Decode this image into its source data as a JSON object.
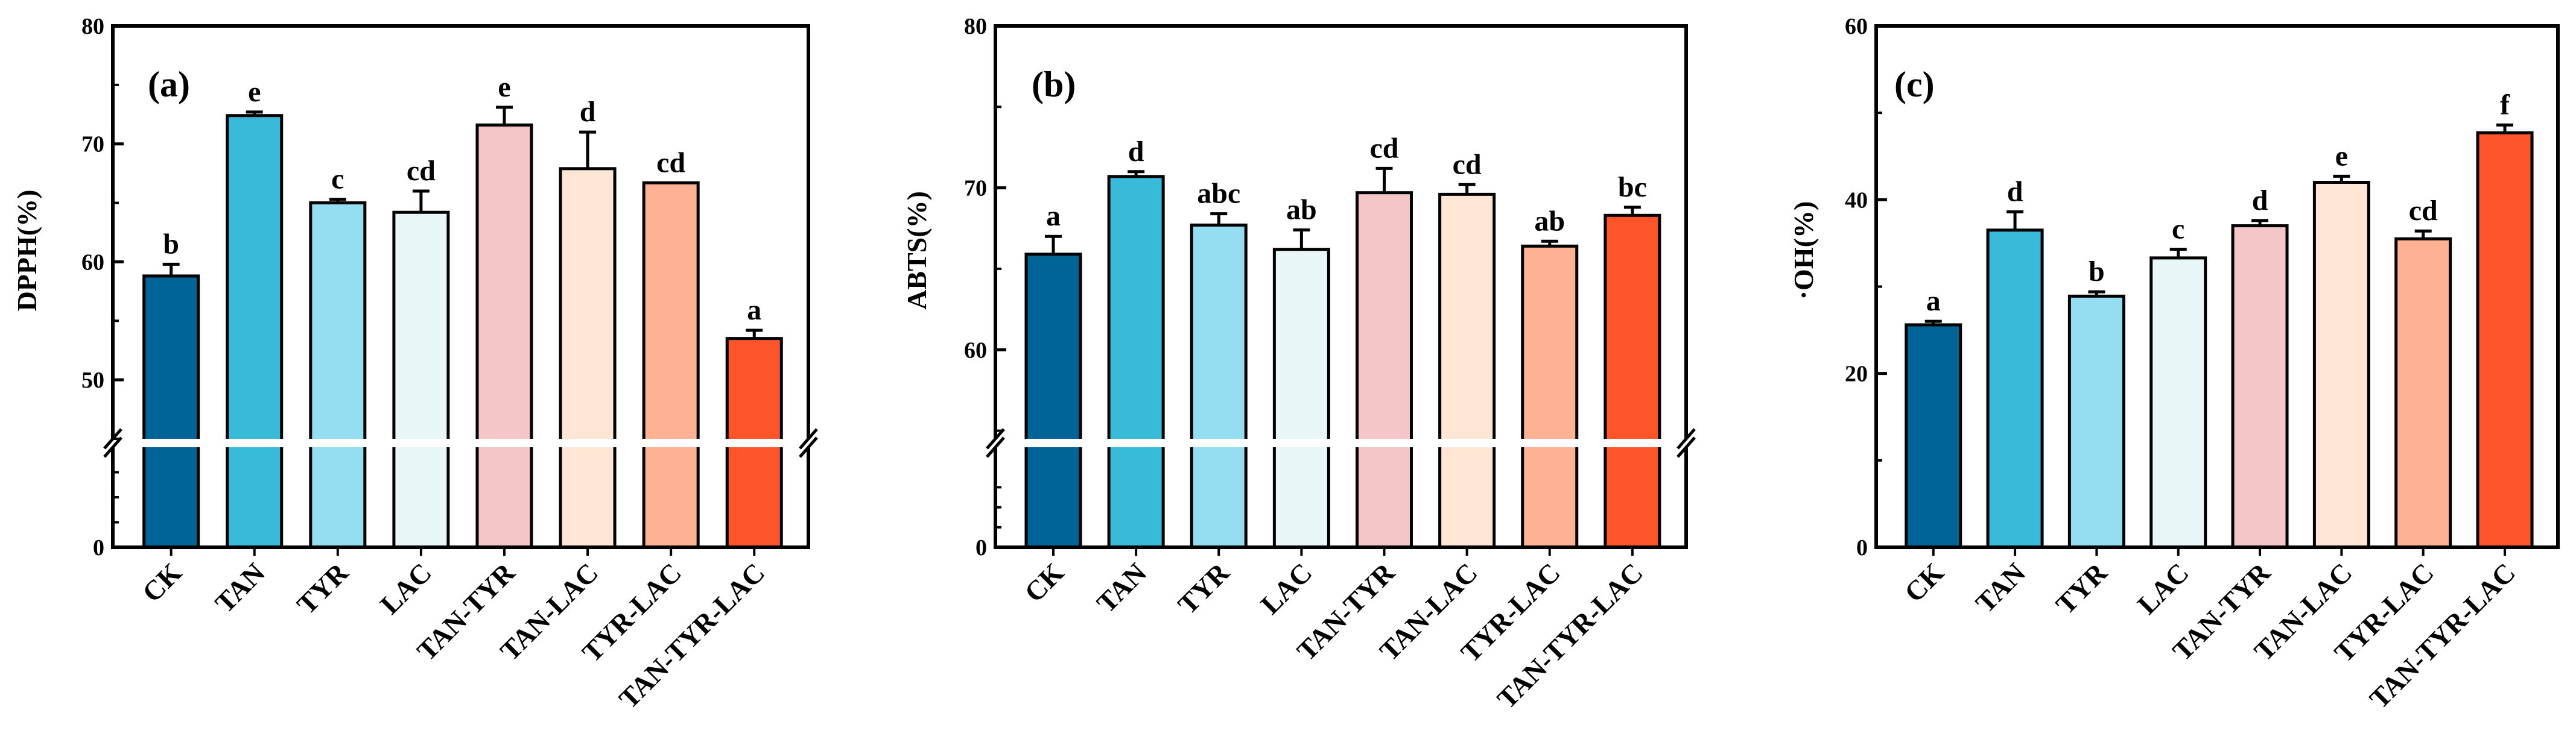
{
  "colors": [
    "#016496",
    "#38BBD9",
    "#95DDF0",
    "#E8F6F7",
    "#F4C6C7",
    "#FEE5D4",
    "#FEB193",
    "#FE542A"
  ],
  "chart_data": [
    {
      "type": "bar",
      "panel_label": "(a)",
      "ylabel": "DPPH(%)",
      "categories": [
        "CK",
        "TAN",
        "TYR",
        "LAC",
        "TAN-TYR",
        "TAN-LAC",
        "TYR-LAC",
        "TAN-TYR-LAC"
      ],
      "values": [
        58.8,
        72.4,
        65.0,
        64.2,
        71.6,
        67.9,
        66.7,
        53.5
      ],
      "errors": [
        1.0,
        0.3,
        0.3,
        1.8,
        1.5,
        3.1,
        0.0,
        0.7
      ],
      "letters": [
        "b",
        "e",
        "c",
        "cd",
        "e",
        "d",
        "cd",
        "a"
      ],
      "axis_break": true,
      "lower_range": [
        0,
        40
      ],
      "lower_ticks": [
        "0"
      ],
      "upper_range": [
        45,
        80
      ],
      "upper_ticks": [
        "50",
        "60",
        "70",
        "80"
      ]
    },
    {
      "type": "bar",
      "panel_label": "(b)",
      "ylabel": "ABTS(%)",
      "categories": [
        "CK",
        "TAN",
        "TYR",
        "LAC",
        "TAN-TYR",
        "TAN-LAC",
        "TYR-LAC",
        "TAN-TYR-LAC"
      ],
      "values": [
        65.9,
        70.7,
        67.7,
        66.2,
        69.7,
        69.6,
        66.4,
        68.3
      ],
      "errors": [
        1.1,
        0.3,
        0.7,
        1.2,
        1.5,
        0.6,
        0.3,
        0.5
      ],
      "letters": [
        "a",
        "d",
        "abc",
        "ab",
        "cd",
        "cd",
        "ab",
        "bc"
      ],
      "axis_break": true,
      "lower_range": [
        0,
        50
      ],
      "lower_ticks": [
        "0"
      ],
      "upper_range": [
        54.5,
        80
      ],
      "upper_ticks": [
        "60",
        "70",
        "80"
      ]
    },
    {
      "type": "bar",
      "panel_label": "(c)",
      "ylabel": "·OH(%)",
      "categories": [
        "CK",
        "TAN",
        "TYR",
        "LAC",
        "TAN-TYR",
        "TAN-LAC",
        "TYR-LAC",
        "TAN-TYR-LAC"
      ],
      "values": [
        25.6,
        36.5,
        28.9,
        33.3,
        37.0,
        42.0,
        35.5,
        47.7
      ],
      "errors": [
        0.4,
        2.1,
        0.5,
        1.0,
        0.6,
        0.7,
        0.9,
        0.9
      ],
      "letters": [
        "a",
        "d",
        "b",
        "c",
        "d",
        "e",
        "cd",
        "f"
      ],
      "axis_break": false,
      "range": [
        0,
        60
      ],
      "ticks": [
        "0",
        "20",
        "40",
        "60"
      ]
    }
  ]
}
